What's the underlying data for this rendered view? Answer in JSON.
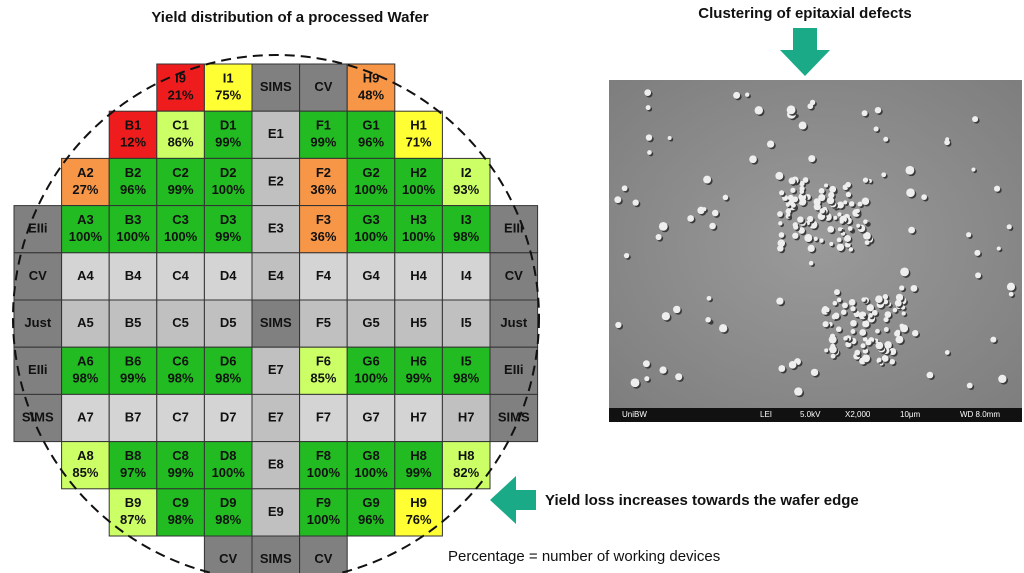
{
  "left_title": "Yield distribution of a processed Wafer",
  "right_title": "Clustering of epitaxial defects",
  "edge_note": "Yield loss increases towards the wafer edge",
  "footnote": "Percentage = number of working devices",
  "sem_caption": [
    "UniBW",
    "LEI",
    "5.0kV",
    "X2,000",
    "10μm",
    "WD 8.0mm"
  ],
  "wafer_rows": [
    [
      null,
      null,
      null,
      {
        "label": "I9",
        "yield": "21%",
        "color": "#ee1c1c"
      },
      {
        "label": "I1",
        "yield": "75%",
        "color": "#ffff33"
      },
      {
        "label": "SIMS",
        "color": "#808080"
      },
      {
        "label": "CV",
        "color": "#808080"
      },
      {
        "label": "H9",
        "yield": "48%",
        "color": "#f79646"
      },
      null,
      null,
      null
    ],
    [
      null,
      null,
      {
        "label": "B1",
        "yield": "12%",
        "color": "#ee1c1c"
      },
      {
        "label": "C1",
        "yield": "86%",
        "color": "#ccff66"
      },
      {
        "label": "D1",
        "yield": "99%",
        "color": "#22bb22"
      },
      {
        "label": "E1",
        "color": "#c0c0c0"
      },
      {
        "label": "F1",
        "yield": "99%",
        "color": "#22bb22"
      },
      {
        "label": "G1",
        "yield": "96%",
        "color": "#22bb22"
      },
      {
        "label": "H1",
        "yield": "71%",
        "color": "#ffff33"
      },
      null,
      null
    ],
    [
      null,
      {
        "label": "A2",
        "yield": "27%",
        "color": "#f79646"
      },
      {
        "label": "B2",
        "yield": "96%",
        "color": "#22bb22"
      },
      {
        "label": "C2",
        "yield": "99%",
        "color": "#22bb22"
      },
      {
        "label": "D2",
        "yield": "100%",
        "color": "#22bb22"
      },
      {
        "label": "E2",
        "color": "#c0c0c0"
      },
      {
        "label": "F2",
        "yield": "36%",
        "color": "#f79646"
      },
      {
        "label": "G2",
        "yield": "100%",
        "color": "#22bb22"
      },
      {
        "label": "H2",
        "yield": "100%",
        "color": "#22bb22"
      },
      {
        "label": "I2",
        "yield": "93%",
        "color": "#ccff66"
      },
      null
    ],
    [
      {
        "label": "EIIi",
        "color": "#808080"
      },
      {
        "label": "A3",
        "yield": "100%",
        "color": "#22bb22"
      },
      {
        "label": "B3",
        "yield": "100%",
        "color": "#22bb22"
      },
      {
        "label": "C3",
        "yield": "100%",
        "color": "#22bb22"
      },
      {
        "label": "D3",
        "yield": "99%",
        "color": "#22bb22"
      },
      {
        "label": "E3",
        "color": "#c0c0c0"
      },
      {
        "label": "F3",
        "yield": "36%",
        "color": "#f79646"
      },
      {
        "label": "G3",
        "yield": "100%",
        "color": "#22bb22"
      },
      {
        "label": "H3",
        "yield": "100%",
        "color": "#22bb22"
      },
      {
        "label": "I3",
        "yield": "98%",
        "color": "#22bb22"
      },
      {
        "label": "EIIi",
        "color": "#808080"
      }
    ],
    [
      {
        "label": "CV",
        "color": "#808080"
      },
      {
        "label": "A4",
        "color": "#d4d4d4"
      },
      {
        "label": "B4",
        "color": "#d4d4d4"
      },
      {
        "label": "C4",
        "color": "#d4d4d4"
      },
      {
        "label": "D4",
        "color": "#d4d4d4"
      },
      {
        "label": "E4",
        "color": "#c0c0c0"
      },
      {
        "label": "F4",
        "color": "#d4d4d4"
      },
      {
        "label": "G4",
        "color": "#d4d4d4"
      },
      {
        "label": "H4",
        "color": "#d4d4d4"
      },
      {
        "label": "I4",
        "color": "#d4d4d4"
      },
      {
        "label": "CV",
        "color": "#808080"
      }
    ],
    [
      {
        "label": "Just",
        "color": "#808080"
      },
      {
        "label": "A5",
        "color": "#c0c0c0"
      },
      {
        "label": "B5",
        "color": "#c0c0c0"
      },
      {
        "label": "C5",
        "color": "#c0c0c0"
      },
      {
        "label": "D5",
        "color": "#c0c0c0"
      },
      {
        "label": "SIMS",
        "color": "#808080"
      },
      {
        "label": "F5",
        "color": "#c0c0c0"
      },
      {
        "label": "G5",
        "color": "#c0c0c0"
      },
      {
        "label": "H5",
        "color": "#c0c0c0"
      },
      {
        "label": "I5",
        "color": "#c0c0c0"
      },
      {
        "label": "Just",
        "color": "#808080"
      }
    ],
    [
      {
        "label": "EIIi",
        "color": "#808080"
      },
      {
        "label": "A6",
        "yield": "98%",
        "color": "#22bb22"
      },
      {
        "label": "B6",
        "yield": "99%",
        "color": "#22bb22"
      },
      {
        "label": "C6",
        "yield": "98%",
        "color": "#22bb22"
      },
      {
        "label": "D6",
        "yield": "98%",
        "color": "#22bb22"
      },
      {
        "label": "E7",
        "color": "#c0c0c0"
      },
      {
        "label": "F6",
        "yield": "85%",
        "color": "#ccff66"
      },
      {
        "label": "G6",
        "yield": "100%",
        "color": "#22bb22"
      },
      {
        "label": "H6",
        "yield": "99%",
        "color": "#22bb22"
      },
      {
        "label": "I5",
        "yield": "98%",
        "color": "#22bb22"
      },
      {
        "label": "EIIi",
        "color": "#808080"
      }
    ],
    [
      {
        "label": "SIMS",
        "color": "#808080"
      },
      {
        "label": "A7",
        "color": "#d4d4d4"
      },
      {
        "label": "B7",
        "color": "#d4d4d4"
      },
      {
        "label": "C7",
        "color": "#d4d4d4"
      },
      {
        "label": "D7",
        "color": "#d4d4d4"
      },
      {
        "label": "E7",
        "color": "#c0c0c0"
      },
      {
        "label": "F7",
        "color": "#d4d4d4"
      },
      {
        "label": "G7",
        "color": "#d4d4d4"
      },
      {
        "label": "H7",
        "color": "#d4d4d4"
      },
      {
        "label": "H7",
        "color": "#c0c0c0"
      },
      {
        "label": "SIMS",
        "color": "#808080"
      }
    ],
    [
      null,
      {
        "label": "A8",
        "yield": "85%",
        "color": "#ccff66"
      },
      {
        "label": "B8",
        "yield": "97%",
        "color": "#22bb22"
      },
      {
        "label": "C8",
        "yield": "99%",
        "color": "#22bb22"
      },
      {
        "label": "D8",
        "yield": "100%",
        "color": "#22bb22"
      },
      {
        "label": "E8",
        "color": "#c0c0c0"
      },
      {
        "label": "F8",
        "yield": "100%",
        "color": "#22bb22"
      },
      {
        "label": "G8",
        "yield": "100%",
        "color": "#22bb22"
      },
      {
        "label": "H8",
        "yield": "99%",
        "color": "#22bb22"
      },
      {
        "label": "H8",
        "yield": "82%",
        "color": "#ccff66"
      },
      null
    ],
    [
      null,
      null,
      {
        "label": "B9",
        "yield": "87%",
        "color": "#ccff66"
      },
      {
        "label": "C9",
        "yield": "98%",
        "color": "#22bb22"
      },
      {
        "label": "D9",
        "yield": "98%",
        "color": "#22bb22"
      },
      {
        "label": "E9",
        "color": "#c0c0c0"
      },
      {
        "label": "F9",
        "yield": "100%",
        "color": "#22bb22"
      },
      {
        "label": "G9",
        "yield": "96%",
        "color": "#22bb22"
      },
      {
        "label": "H9",
        "yield": "76%",
        "color": "#ffff33"
      },
      null,
      null
    ],
    [
      null,
      null,
      null,
      null,
      {
        "label": "CV",
        "color": "#808080"
      },
      {
        "label": "SIMS",
        "color": "#808080"
      },
      {
        "label": "CV",
        "color": "#808080"
      },
      null,
      null,
      null,
      null
    ]
  ]
}
